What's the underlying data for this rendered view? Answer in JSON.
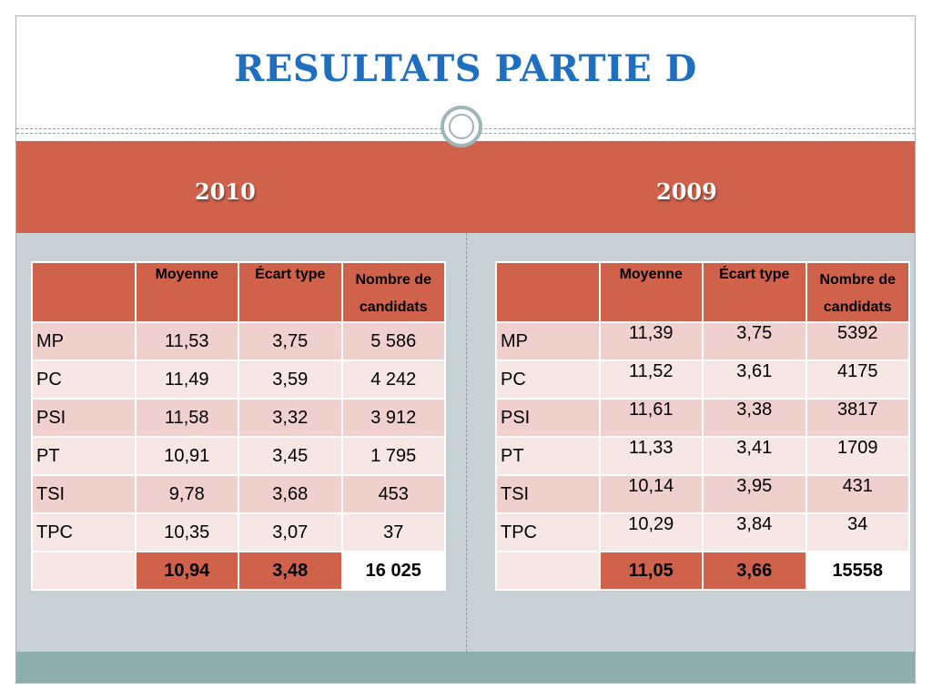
{
  "title": "RESULTATS PARTIE D",
  "columns": {
    "left": {
      "year": "2010",
      "headers": [
        "",
        "Moyenne",
        "Écart type",
        "Nombre de candidats"
      ],
      "rows": [
        {
          "label": "MP",
          "moyenne": "11,53",
          "ecart": "3,75",
          "nombre": "5 586"
        },
        {
          "label": "PC",
          "moyenne": "11,49",
          "ecart": "3,59",
          "nombre": "4 242"
        },
        {
          "label": "PSI",
          "moyenne": "11,58",
          "ecart": "3,32",
          "nombre": "3 912"
        },
        {
          "label": "PT",
          "moyenne": "10,91",
          "ecart": "3,45",
          "nombre": "1 795"
        },
        {
          "label": "TSI",
          "moyenne": "9,78",
          "ecart": "3,68",
          "nombre": "453"
        },
        {
          "label": "TPC",
          "moyenne": "10,35",
          "ecart": "3,07",
          "nombre": "37"
        }
      ],
      "total": {
        "label": "",
        "moyenne": "10,94",
        "ecart": "3,48",
        "nombre": "16 025"
      }
    },
    "right": {
      "year": "2009",
      "headers": [
        "",
        "Moyenne",
        "Écart type",
        "Nombre de candidats"
      ],
      "rows": [
        {
          "label": "MP",
          "moyenne": "11,39",
          "ecart": "3,75",
          "nombre": "5392"
        },
        {
          "label": "PC",
          "moyenne": "11,52",
          "ecart": "3,61",
          "nombre": "4175"
        },
        {
          "label": "PSI",
          "moyenne": "11,61",
          "ecart": "3,38",
          "nombre": "3817"
        },
        {
          "label": "PT",
          "moyenne": "11,33",
          "ecart": "3,41",
          "nombre": "1709"
        },
        {
          "label": "TSI",
          "moyenne": "10,14",
          "ecart": "3,95",
          "nombre": "431"
        },
        {
          "label": "TPC",
          "moyenne": "10,29",
          "ecart": "3,84",
          "nombre": "34"
        }
      ],
      "total": {
        "label": "",
        "moyenne": "11,05",
        "ecart": "3,66",
        "nombre": "15558"
      }
    }
  },
  "colors": {
    "accent": "#d0614a",
    "title": "#1f6fc1",
    "row_odd": "#efd0cd",
    "row_even": "#f6e7e5",
    "panel": "#c8d2d6",
    "footer": "#8eaeae"
  }
}
